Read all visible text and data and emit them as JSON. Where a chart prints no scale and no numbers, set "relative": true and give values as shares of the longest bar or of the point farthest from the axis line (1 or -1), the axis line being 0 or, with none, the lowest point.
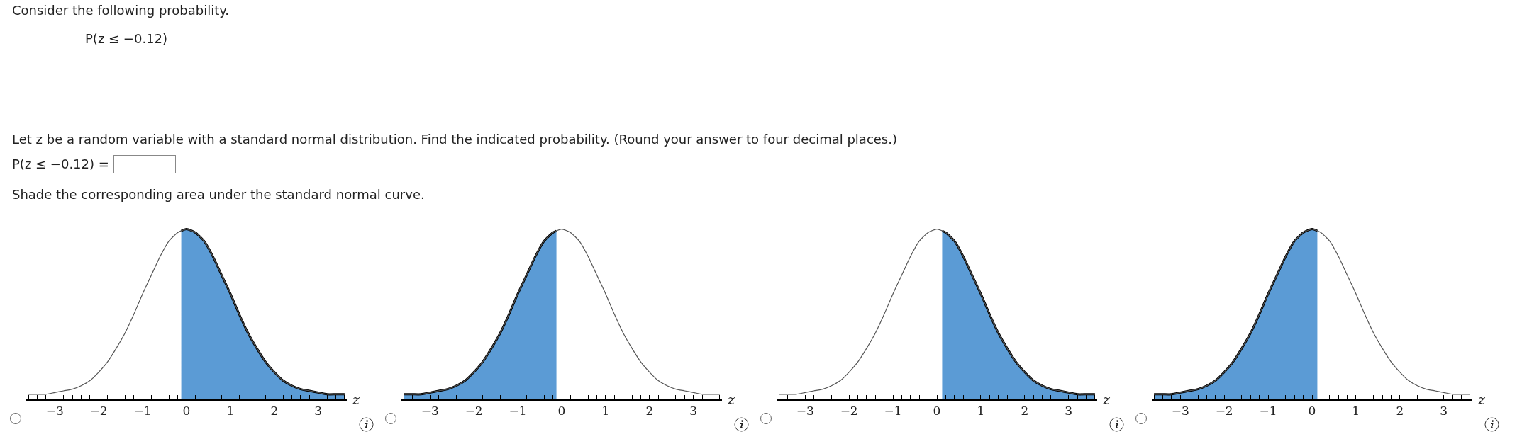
{
  "chart_data": [
    {
      "type": "other",
      "title": "Consider the following probability.",
      "annotations": [
        "P(z ≤ −0.12)",
        "Let z be a random variable with a standard normal distribution. Find the indicated probability. (Round your answer to four decimal places.)",
        "P(z ≤ −0.12) =",
        "Shade the corresponding area under the standard normal curve."
      ]
    },
    {
      "type": "line",
      "relative": true,
      "xlabel": "z",
      "xlim": [
        -3.65,
        3.65
      ],
      "xticks": [
        {
          "value": -3.6,
          "label": null
        },
        {
          "value": -3.4,
          "label": null
        },
        {
          "value": -3.2,
          "label": null
        },
        {
          "value": -3,
          "label": "−3"
        },
        {
          "value": -2.8,
          "label": null
        },
        {
          "value": -2.6,
          "label": null
        },
        {
          "value": -2.4,
          "label": null
        },
        {
          "value": -2.2,
          "label": null
        },
        {
          "value": -2,
          "label": "−2"
        },
        {
          "value": -1.8,
          "label": null
        },
        {
          "value": -1.6,
          "label": null
        },
        {
          "value": -1.4,
          "label": null
        },
        {
          "value": -1.2,
          "label": null
        },
        {
          "value": -1,
          "label": "−1"
        },
        {
          "value": -0.8,
          "label": null
        },
        {
          "value": -0.6,
          "label": null
        },
        {
          "value": -0.4,
          "label": null
        },
        {
          "value": -0.2,
          "label": null
        },
        0,
        {
          "value": 0.2,
          "label": null
        },
        {
          "value": 0.4,
          "label": null
        },
        {
          "value": 0.6,
          "label": null
        },
        {
          "value": 0.8,
          "label": null
        },
        1,
        {
          "value": 1.2,
          "label": null
        },
        {
          "value": 1.4,
          "label": null
        },
        {
          "value": 1.6,
          "label": null
        },
        {
          "value": 1.8,
          "label": null
        },
        2,
        {
          "value": 2.2,
          "label": null
        },
        {
          "value": 2.4,
          "label": null
        },
        {
          "value": 2.6,
          "label": null
        },
        {
          "value": 2.8,
          "label": null
        },
        3,
        {
          "value": 3.2,
          "label": null
        },
        {
          "value": 3.4,
          "label": null
        },
        {
          "value": 3.6,
          "label": null
        }
      ],
      "series": [
        {
          "type": "line",
          "color": "#555555",
          "x": [
            -3.6,
            -3.4,
            -3.2,
            -3,
            -2.8,
            -2.6,
            -2.4,
            -2.2,
            -2,
            -1.8,
            -1.6,
            -1.4,
            -1.2,
            -1,
            -0.8,
            -0.6,
            -0.4,
            -0.2,
            0,
            0.2,
            0.4,
            0.6,
            0.8,
            1,
            1.2,
            1.4,
            1.6,
            1.8,
            2,
            2.2,
            2.4,
            2.6,
            2.8,
            3,
            3.2,
            3.4,
            3.6
          ],
          "values": [
            0.03,
            0.03,
            0.03,
            0.04,
            0.05,
            0.06,
            0.08,
            0.11,
            0.16,
            0.22,
            0.3,
            0.39,
            0.5,
            0.62,
            0.73,
            0.84,
            0.93,
            0.98,
            1,
            0.98,
            0.93,
            0.84,
            0.73,
            0.62,
            0.5,
            0.39,
            0.3,
            0.22,
            0.16,
            0.11,
            0.08,
            0.06,
            0.05,
            0.04,
            0.03,
            0.03,
            0.03
          ]
        },
        {
          "type": "area",
          "color": "#5b9bd5",
          "x": [
            -0.12,
            0,
            0.2,
            0.4,
            0.6,
            0.8,
            1,
            1.2,
            1.4,
            1.6,
            1.8,
            2,
            2.2,
            2.4,
            2.6,
            2.8,
            3,
            3.2,
            3.4,
            3.6
          ],
          "values": [
            0.99,
            1,
            0.98,
            0.93,
            0.84,
            0.73,
            0.62,
            0.5,
            0.39,
            0.3,
            0.22,
            0.16,
            0.11,
            0.08,
            0.06,
            0.05,
            0.04,
            0.03,
            0.03,
            0.03
          ]
        }
      ]
    },
    {
      "type": "line",
      "relative": true,
      "xlabel": "z",
      "xlim": [
        -3.65,
        3.65
      ],
      "xticks": [
        {
          "value": -3.6,
          "label": null
        },
        {
          "value": -3.4,
          "label": null
        },
        {
          "value": -3.2,
          "label": null
        },
        {
          "value": -3,
          "label": "−3"
        },
        {
          "value": -2.8,
          "label": null
        },
        {
          "value": -2.6,
          "label": null
        },
        {
          "value": -2.4,
          "label": null
        },
        {
          "value": -2.2,
          "label": null
        },
        {
          "value": -2,
          "label": "−2"
        },
        {
          "value": -1.8,
          "label": null
        },
        {
          "value": -1.6,
          "label": null
        },
        {
          "value": -1.4,
          "label": null
        },
        {
          "value": -1.2,
          "label": null
        },
        {
          "value": -1,
          "label": "−1"
        },
        {
          "value": -0.8,
          "label": null
        },
        {
          "value": -0.6,
          "label": null
        },
        {
          "value": -0.4,
          "label": null
        },
        {
          "value": -0.2,
          "label": null
        },
        0,
        {
          "value": 0.2,
          "label": null
        },
        {
          "value": 0.4,
          "label": null
        },
        {
          "value": 0.6,
          "label": null
        },
        {
          "value": 0.8,
          "label": null
        },
        1,
        {
          "value": 1.2,
          "label": null
        },
        {
          "value": 1.4,
          "label": null
        },
        {
          "value": 1.6,
          "label": null
        },
        {
          "value": 1.8,
          "label": null
        },
        2,
        {
          "value": 2.2,
          "label": null
        },
        {
          "value": 2.4,
          "label": null
        },
        {
          "value": 2.6,
          "label": null
        },
        {
          "value": 2.8,
          "label": null
        },
        3,
        {
          "value": 3.2,
          "label": null
        },
        {
          "value": 3.4,
          "label": null
        },
        {
          "value": 3.6,
          "label": null
        }
      ],
      "series": [
        {
          "type": "line",
          "color": "#555555",
          "x": [
            -3.6,
            -3.4,
            -3.2,
            -3,
            -2.8,
            -2.6,
            -2.4,
            -2.2,
            -2,
            -1.8,
            -1.6,
            -1.4,
            -1.2,
            -1,
            -0.8,
            -0.6,
            -0.4,
            -0.2,
            0,
            0.2,
            0.4,
            0.6,
            0.8,
            1,
            1.2,
            1.4,
            1.6,
            1.8,
            2,
            2.2,
            2.4,
            2.6,
            2.8,
            3,
            3.2,
            3.4,
            3.6
          ],
          "values": [
            0.03,
            0.03,
            0.03,
            0.04,
            0.05,
            0.06,
            0.08,
            0.11,
            0.16,
            0.22,
            0.3,
            0.39,
            0.5,
            0.62,
            0.73,
            0.84,
            0.93,
            0.98,
            1,
            0.98,
            0.93,
            0.84,
            0.73,
            0.62,
            0.5,
            0.39,
            0.3,
            0.22,
            0.16,
            0.11,
            0.08,
            0.06,
            0.05,
            0.04,
            0.03,
            0.03,
            0.03
          ]
        },
        {
          "type": "area",
          "color": "#5b9bd5",
          "x": [
            -3.6,
            -3.4,
            -3.2,
            -3,
            -2.8,
            -2.6,
            -2.4,
            -2.2,
            -2,
            -1.8,
            -1.6,
            -1.4,
            -1.2,
            -1,
            -0.8,
            -0.6,
            -0.4,
            -0.2,
            -0.12
          ],
          "values": [
            0.03,
            0.03,
            0.03,
            0.04,
            0.05,
            0.06,
            0.08,
            0.11,
            0.16,
            0.22,
            0.3,
            0.39,
            0.5,
            0.62,
            0.73,
            0.84,
            0.93,
            0.98,
            0.99
          ]
        }
      ]
    },
    {
      "type": "line",
      "relative": true,
      "xlabel": "z",
      "xlim": [
        -3.65,
        3.65
      ],
      "xticks": [
        {
          "value": -3.6,
          "label": null
        },
        {
          "value": -3.4,
          "label": null
        },
        {
          "value": -3.2,
          "label": null
        },
        {
          "value": -3,
          "label": "−3"
        },
        {
          "value": -2.8,
          "label": null
        },
        {
          "value": -2.6,
          "label": null
        },
        {
          "value": -2.4,
          "label": null
        },
        {
          "value": -2.2,
          "label": null
        },
        {
          "value": -2,
          "label": "−2"
        },
        {
          "value": -1.8,
          "label": null
        },
        {
          "value": -1.6,
          "label": null
        },
        {
          "value": -1.4,
          "label": null
        },
        {
          "value": -1.2,
          "label": null
        },
        {
          "value": -1,
          "label": "−1"
        },
        {
          "value": -0.8,
          "label": null
        },
        {
          "value": -0.6,
          "label": null
        },
        {
          "value": -0.4,
          "label": null
        },
        {
          "value": -0.2,
          "label": null
        },
        0,
        {
          "value": 0.2,
          "label": null
        },
        {
          "value": 0.4,
          "label": null
        },
        {
          "value": 0.6,
          "label": null
        },
        {
          "value": 0.8,
          "label": null
        },
        1,
        {
          "value": 1.2,
          "label": null
        },
        {
          "value": 1.4,
          "label": null
        },
        {
          "value": 1.6,
          "label": null
        },
        {
          "value": 1.8,
          "label": null
        },
        2,
        {
          "value": 2.2,
          "label": null
        },
        {
          "value": 2.4,
          "label": null
        },
        {
          "value": 2.6,
          "label": null
        },
        {
          "value": 2.8,
          "label": null
        },
        3,
        {
          "value": 3.2,
          "label": null
        },
        {
          "value": 3.4,
          "label": null
        },
        {
          "value": 3.6,
          "label": null
        }
      ],
      "series": [
        {
          "type": "line",
          "color": "#555555",
          "x": [
            -3.6,
            -3.4,
            -3.2,
            -3,
            -2.8,
            -2.6,
            -2.4,
            -2.2,
            -2,
            -1.8,
            -1.6,
            -1.4,
            -1.2,
            -1,
            -0.8,
            -0.6,
            -0.4,
            -0.2,
            0,
            0.2,
            0.4,
            0.6,
            0.8,
            1,
            1.2,
            1.4,
            1.6,
            1.8,
            2,
            2.2,
            2.4,
            2.6,
            2.8,
            3,
            3.2,
            3.4,
            3.6
          ],
          "values": [
            0.03,
            0.03,
            0.03,
            0.04,
            0.05,
            0.06,
            0.08,
            0.11,
            0.16,
            0.22,
            0.3,
            0.39,
            0.5,
            0.62,
            0.73,
            0.84,
            0.93,
            0.98,
            1,
            0.98,
            0.93,
            0.84,
            0.73,
            0.62,
            0.5,
            0.39,
            0.3,
            0.22,
            0.16,
            0.11,
            0.08,
            0.06,
            0.05,
            0.04,
            0.03,
            0.03,
            0.03
          ]
        },
        {
          "type": "area",
          "color": "#5b9bd5",
          "x": [
            0.12,
            0.2,
            0.4,
            0.6,
            0.8,
            1,
            1.2,
            1.4,
            1.6,
            1.8,
            2,
            2.2,
            2.4,
            2.6,
            2.8,
            3,
            3.2,
            3.4,
            3.6
          ],
          "values": [
            0.99,
            0.98,
            0.93,
            0.84,
            0.73,
            0.62,
            0.5,
            0.39,
            0.3,
            0.22,
            0.16,
            0.11,
            0.08,
            0.06,
            0.05,
            0.04,
            0.03,
            0.03,
            0.03
          ]
        }
      ]
    },
    {
      "type": "line",
      "relative": true,
      "xlabel": "z",
      "xlim": [
        -3.65,
        3.65
      ],
      "xticks": [
        {
          "value": -3.6,
          "label": null
        },
        {
          "value": -3.4,
          "label": null
        },
        {
          "value": -3.2,
          "label": null
        },
        {
          "value": -3,
          "label": "−3"
        },
        {
          "value": -2.8,
          "label": null
        },
        {
          "value": -2.6,
          "label": null
        },
        {
          "value": -2.4,
          "label": null
        },
        {
          "value": -2.2,
          "label": null
        },
        {
          "value": -2,
          "label": "−2"
        },
        {
          "value": -1.8,
          "label": null
        },
        {
          "value": -1.6,
          "label": null
        },
        {
          "value": -1.4,
          "label": null
        },
        {
          "value": -1.2,
          "label": null
        },
        {
          "value": -1,
          "label": "−1"
        },
        {
          "value": -0.8,
          "label": null
        },
        {
          "value": -0.6,
          "label": null
        },
        {
          "value": -0.4,
          "label": null
        },
        {
          "value": -0.2,
          "label": null
        },
        0,
        {
          "value": 0.2,
          "label": null
        },
        {
          "value": 0.4,
          "label": null
        },
        {
          "value": 0.6,
          "label": null
        },
        {
          "value": 0.8,
          "label": null
        },
        1,
        {
          "value": 1.2,
          "label": null
        },
        {
          "value": 1.4,
          "label": null
        },
        {
          "value": 1.6,
          "label": null
        },
        {
          "value": 1.8,
          "label": null
        },
        2,
        {
          "value": 2.2,
          "label": null
        },
        {
          "value": 2.4,
          "label": null
        },
        {
          "value": 2.6,
          "label": null
        },
        {
          "value": 2.8,
          "label": null
        },
        3,
        {
          "value": 3.2,
          "label": null
        },
        {
          "value": 3.4,
          "label": null
        },
        {
          "value": 3.6,
          "label": null
        }
      ],
      "series": [
        {
          "type": "line",
          "color": "#555555",
          "x": [
            -3.6,
            -3.4,
            -3.2,
            -3,
            -2.8,
            -2.6,
            -2.4,
            -2.2,
            -2,
            -1.8,
            -1.6,
            -1.4,
            -1.2,
            -1,
            -0.8,
            -0.6,
            -0.4,
            -0.2,
            0,
            0.2,
            0.4,
            0.6,
            0.8,
            1,
            1.2,
            1.4,
            1.6,
            1.8,
            2,
            2.2,
            2.4,
            2.6,
            2.8,
            3,
            3.2,
            3.4,
            3.6
          ],
          "values": [
            0.03,
            0.03,
            0.03,
            0.04,
            0.05,
            0.06,
            0.08,
            0.11,
            0.16,
            0.22,
            0.3,
            0.39,
            0.5,
            0.62,
            0.73,
            0.84,
            0.93,
            0.98,
            1,
            0.98,
            0.93,
            0.84,
            0.73,
            0.62,
            0.5,
            0.39,
            0.3,
            0.22,
            0.16,
            0.11,
            0.08,
            0.06,
            0.05,
            0.04,
            0.03,
            0.03,
            0.03
          ]
        },
        {
          "type": "area",
          "color": "#5b9bd5",
          "x": [
            -3.6,
            -3.4,
            -3.2,
            -3,
            -2.8,
            -2.6,
            -2.4,
            -2.2,
            -2,
            -1.8,
            -1.6,
            -1.4,
            -1.2,
            -1,
            -0.8,
            -0.6,
            -0.4,
            -0.2,
            0,
            0.12
          ],
          "values": [
            0.03,
            0.03,
            0.03,
            0.04,
            0.05,
            0.06,
            0.08,
            0.11,
            0.16,
            0.22,
            0.3,
            0.39,
            0.5,
            0.62,
            0.73,
            0.84,
            0.93,
            0.98,
            1,
            0.99
          ]
        }
      ]
    }
  ]
}
